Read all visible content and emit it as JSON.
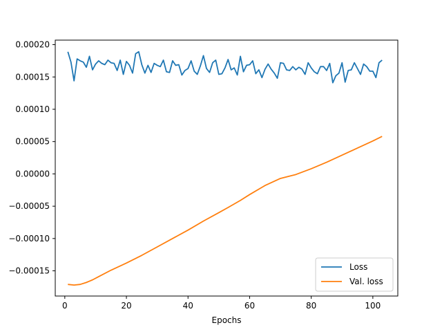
{
  "chart_data": {
    "type": "line",
    "title": "",
    "xlabel": "Epochs",
    "ylabel": "",
    "xlim": [
      -3.1,
      108.1
    ],
    "ylim": [
      -0.000189,
      0.000207
    ],
    "x_ticks": [
      0,
      20,
      40,
      60,
      80,
      100
    ],
    "x_tick_labels": [
      "0",
      "20",
      "40",
      "60",
      "80",
      "100"
    ],
    "y_ticks": [
      -0.00015,
      -0.0001,
      -5e-05,
      0,
      5e-05,
      0.0001,
      0.00015,
      0.0002
    ],
    "y_tick_labels": [
      "−0.00015",
      "−0.00010",
      "−0.00005",
      "0.00000",
      "0.00005",
      "0.00010",
      "0.00015",
      "0.00020"
    ],
    "grid": false,
    "legend_position": "lower-right",
    "series": [
      {
        "name": "Loss",
        "color": "#1f77b4",
        "x": [
          1,
          2,
          3,
          4,
          5,
          6,
          7,
          8,
          9,
          10,
          11,
          12,
          13,
          14,
          15,
          16,
          17,
          18,
          19,
          20,
          21,
          22,
          23,
          24,
          25,
          26,
          27,
          28,
          29,
          30,
          31,
          32,
          33,
          34,
          35,
          36,
          37,
          38,
          39,
          40,
          41,
          42,
          43,
          44,
          45,
          46,
          47,
          48,
          49,
          50,
          51,
          52,
          53,
          54,
          55,
          56,
          57,
          58,
          59,
          60,
          61,
          62,
          63,
          64,
          65,
          66,
          67,
          68,
          69,
          70,
          71,
          72,
          73,
          74,
          75,
          76,
          77,
          78,
          79,
          80,
          81,
          82,
          83,
          84,
          85,
          86,
          87,
          88,
          89,
          90,
          91,
          92,
          93,
          94,
          95,
          96,
          97,
          98,
          99,
          100,
          101,
          102,
          103
        ],
        "values": [
          0.000189,
          0.000173,
          0.000144,
          0.000178,
          0.000175,
          0.000173,
          0.000165,
          0.000182,
          0.000161,
          0.00017,
          0.000175,
          0.000171,
          0.000169,
          0.000176,
          0.000172,
          0.000171,
          0.00016,
          0.000176,
          0.000154,
          0.000174,
          0.000168,
          0.000156,
          0.000186,
          0.000189,
          0.000169,
          0.000156,
          0.000168,
          0.000157,
          0.000171,
          0.000168,
          0.000166,
          0.000176,
          0.000158,
          0.000157,
          0.000175,
          0.000168,
          0.000169,
          0.000153,
          0.00016,
          0.000163,
          0.000175,
          0.000159,
          0.000154,
          0.000167,
          0.000183,
          0.000163,
          0.000157,
          0.000172,
          0.000176,
          0.000154,
          0.000155,
          0.000164,
          0.000177,
          0.000161,
          0.000164,
          0.000153,
          0.000182,
          0.000158,
          0.000168,
          0.000169,
          0.000175,
          0.000155,
          0.000161,
          0.000149,
          0.000162,
          0.00017,
          0.000162,
          0.000156,
          0.000148,
          0.000172,
          0.000171,
          0.000161,
          0.00016,
          0.000166,
          0.000161,
          0.000165,
          0.000162,
          0.000154,
          0.000172,
          0.000164,
          0.000158,
          0.000155,
          0.000166,
          0.000166,
          0.00016,
          0.000171,
          0.000141,
          0.000152,
          0.000156,
          0.000172,
          0.000142,
          0.00016,
          0.000161,
          0.000172,
          0.000163,
          0.000154,
          0.00017,
          0.000166,
          0.000159,
          0.000159,
          0.000149,
          0.000172,
          0.000176
        ]
      },
      {
        "name": "Val. loss",
        "color": "#ff7f0e",
        "x": [
          1,
          3,
          5,
          7,
          9,
          11,
          15,
          20,
          25,
          30,
          35,
          40,
          45,
          50,
          53,
          57,
          60,
          65,
          70,
          75,
          80,
          85,
          90,
          95,
          100,
          103
        ],
        "values": [
          -0.000171,
          -0.000172,
          -0.000171,
          -0.000168,
          -0.000164,
          -0.000159,
          -0.000149,
          -0.000138,
          -0.000126,
          -0.000113,
          -0.0001,
          -8.7e-05,
          -7.3e-05,
          -6e-05,
          -5.2e-05,
          -4.1e-05,
          -3.2e-05,
          -1.8e-05,
          -7e-06,
          -1e-06,
          8e-06,
          1.8e-05,
          2.9e-05,
          4e-05,
          5.1e-05,
          5.8e-05
        ]
      }
    ]
  }
}
